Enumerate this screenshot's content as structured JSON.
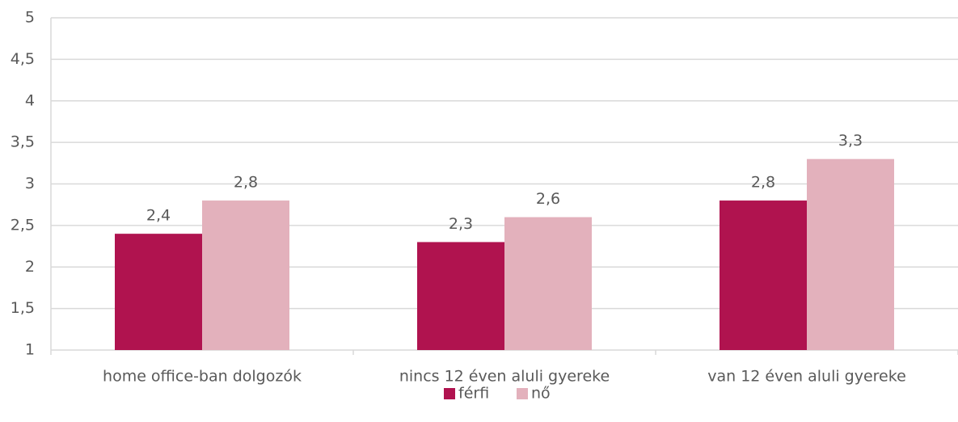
{
  "chart_data": {
    "type": "bar",
    "categories": [
      "home office-ban dolgozók",
      "nincs 12 éven aluli gyereke",
      "van 12 éven aluli gyereke"
    ],
    "series": [
      {
        "name": "férfi",
        "color": "#b0134f",
        "values": [
          2.4,
          2.3,
          2.8
        ],
        "value_labels": [
          "2,4",
          "2,3",
          "2,8"
        ]
      },
      {
        "name": "nő",
        "color": "#e3b1bc",
        "values": [
          2.8,
          2.6,
          3.3
        ],
        "value_labels": [
          "2,8",
          "2,6",
          "3,3"
        ]
      }
    ],
    "ylim": [
      1,
      5
    ],
    "yticks": [
      1,
      {
        "value": 1.5,
        "label": "1,5"
      },
      2,
      {
        "value": 2.5,
        "label": "2,5"
      },
      3,
      {
        "value": 3.5,
        "label": "3,5"
      },
      4,
      {
        "value": 4.5,
        "label": "4,5"
      },
      5
    ],
    "grid": true,
    "legend": "bottom"
  }
}
